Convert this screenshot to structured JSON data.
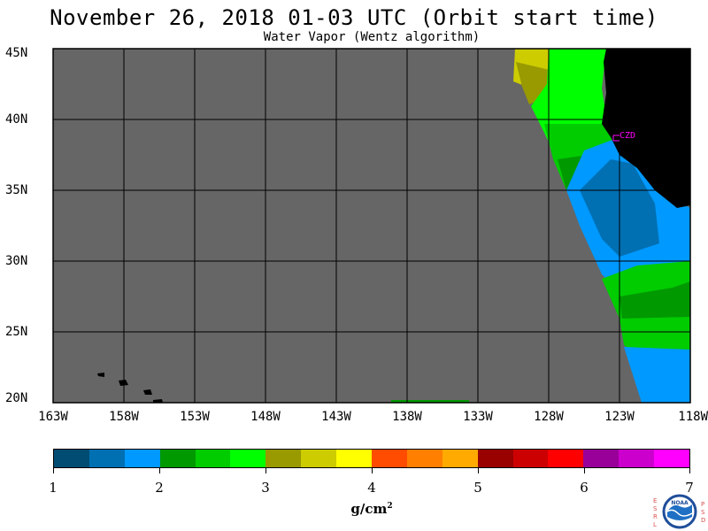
{
  "title": "November 26, 2018  01-03 UTC  (Orbit start time)",
  "subtitle": "Water Vapor (Wentz algorithm)",
  "map": {
    "lat_labels": [
      "45N",
      "40N",
      "35N",
      "30N",
      "25N",
      "20N"
    ],
    "lon_labels": [
      "163W",
      "158W",
      "153W",
      "148W",
      "143W",
      "138W",
      "133W",
      "128W",
      "123W",
      "118W"
    ],
    "station_label": "CZD",
    "colors": {
      "background": "#666666",
      "land": "#000000",
      "grid": "#000000",
      "station": "#ff00ff"
    }
  },
  "colorbar": {
    "tick_labels": [
      "1",
      "2",
      "3",
      "4",
      "5",
      "6",
      "7"
    ],
    "units_base": "g/cm",
    "units_exp": "2",
    "colors": [
      "#004c73",
      "#0070b3",
      "#0099ff",
      "#009900",
      "#00cc00",
      "#00ff00",
      "#999900",
      "#cccc00",
      "#ffff00",
      "#ff4c00",
      "#ff7f00",
      "#ffaa00",
      "#990000",
      "#cc0000",
      "#ff0000",
      "#990099",
      "#cc00cc",
      "#ff00ff"
    ]
  },
  "logo": {
    "left_letters": "ESRL",
    "right_letters": "PSD",
    "center_text": "NOAA"
  }
}
